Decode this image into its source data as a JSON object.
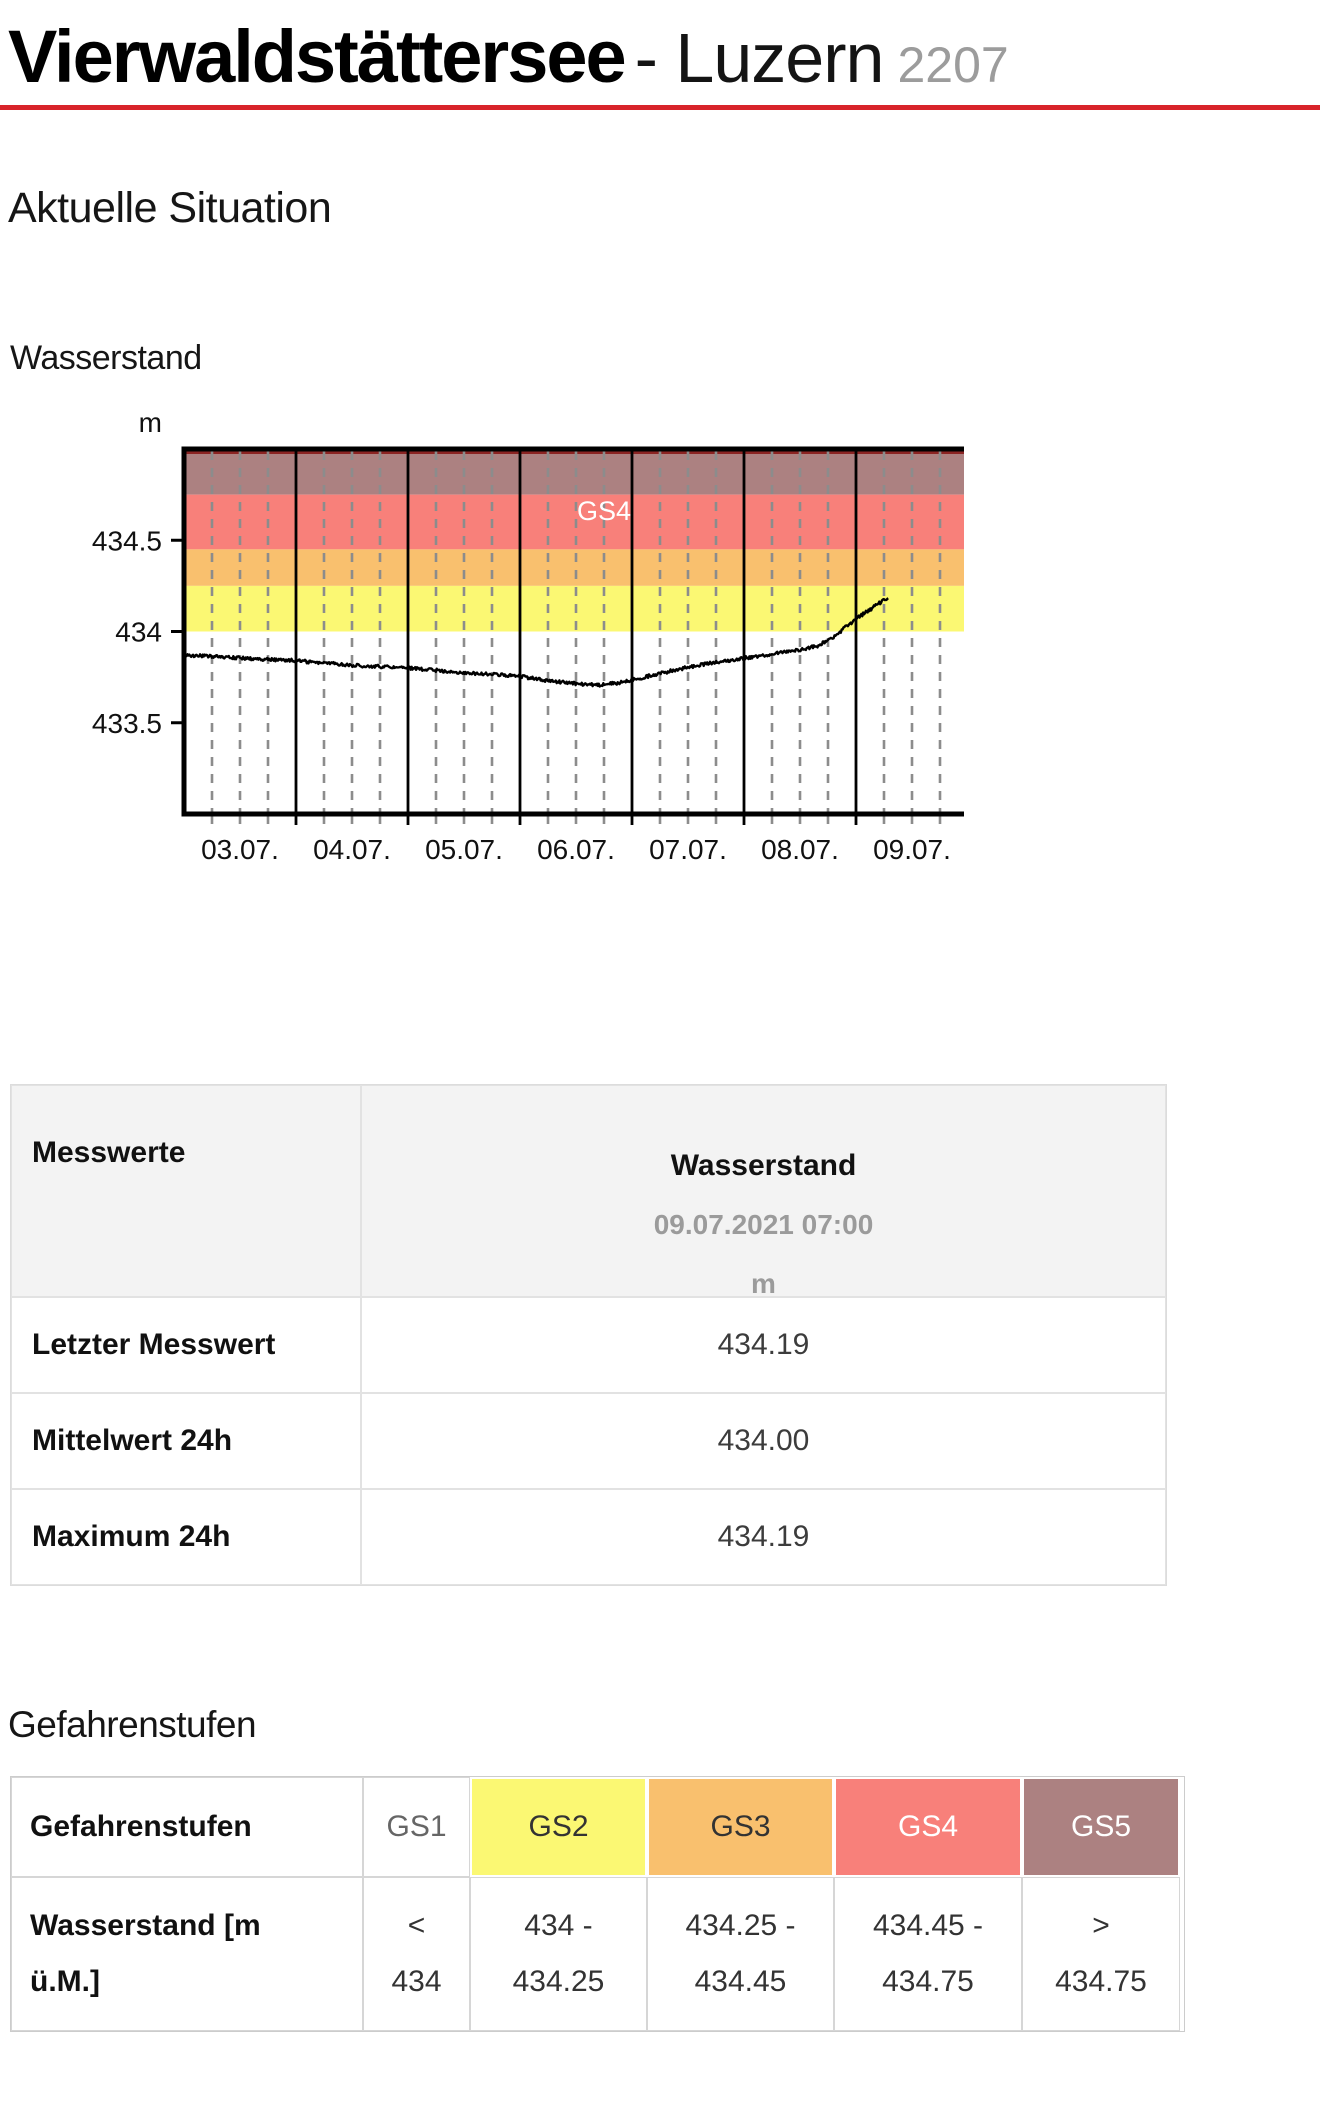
{
  "page": {
    "title_main": "Vierwaldstättersee",
    "title_rest": "- Luzern",
    "station_id": "2207",
    "section_heading": "Aktuelle Situation",
    "chart_heading": "Wasserstand",
    "accent_red": "#d8232a"
  },
  "chart_data": {
    "type": "line",
    "title": "Wasserstand",
    "ylabel": "m",
    "ylim": [
      433.0,
      435.0
    ],
    "yticks": [
      "434.5",
      "434",
      "433.5"
    ],
    "ytick_values": [
      434.5,
      434.0,
      433.5
    ],
    "x_tick_labels": [
      "03.07.",
      "04.07.",
      "05.07.",
      "06.07.",
      "07.07.",
      "08.07.",
      "09.07."
    ],
    "days_total": 7,
    "subticks_per_day": 4,
    "grid_color": "#8c8c8c",
    "line_color": "#000000",
    "top_strip_color": "#8b2423",
    "bands": [
      {
        "label": "GS5",
        "from": 434.75,
        "to": 435.0,
        "color": "#ac8181"
      },
      {
        "label": "GS4",
        "from": 434.45,
        "to": 434.75,
        "color": "#f8807a"
      },
      {
        "label": "GS3",
        "from": 434.25,
        "to": 434.45,
        "color": "#f9c06e"
      },
      {
        "label": "GS2",
        "from": 434.0,
        "to": 434.25,
        "color": "#fbf873"
      }
    ],
    "band_label": {
      "text": "GS4",
      "day": 3.75,
      "value": 434.61,
      "color": "#ffffff"
    },
    "series": [
      {
        "name": "Wasserstand 03.07.-09.07.",
        "end_day": 6.29,
        "control_points": [
          [
            0.0,
            433.87
          ],
          [
            0.5,
            433.855
          ],
          [
            1.0,
            433.84
          ],
          [
            1.5,
            433.815
          ],
          [
            2.0,
            433.8
          ],
          [
            2.5,
            433.775
          ],
          [
            3.0,
            433.755
          ],
          [
            3.25,
            433.73
          ],
          [
            3.5,
            433.715
          ],
          [
            3.7,
            433.705
          ],
          [
            3.9,
            433.72
          ],
          [
            4.0,
            433.735
          ],
          [
            4.25,
            433.77
          ],
          [
            4.5,
            433.805
          ],
          [
            4.75,
            433.83
          ],
          [
            5.0,
            433.855
          ],
          [
            5.25,
            433.875
          ],
          [
            5.5,
            433.9
          ],
          [
            5.65,
            433.92
          ],
          [
            5.8,
            433.97
          ],
          [
            6.0,
            434.07
          ],
          [
            6.15,
            434.13
          ],
          [
            6.29,
            434.19
          ]
        ]
      }
    ],
    "last_value": 434.19
  },
  "measurements_table": {
    "header_left": "Messwerte",
    "header_right_title": "Wasserstand",
    "header_right_datetime": "09.07.2021 07:00",
    "header_right_unit": "m",
    "rows": [
      {
        "label": "Letzter Messwert",
        "value": "434.19"
      },
      {
        "label": "Mittelwert 24h",
        "value": "434.00"
      },
      {
        "label": "Maximum 24h",
        "value": "434.19"
      }
    ]
  },
  "danger_section": {
    "heading": "Gefahrenstufen",
    "table": {
      "row1_label": "Gefahrenstufen",
      "row2_label": "Wasserstand [m ü.M.]",
      "levels": [
        {
          "name": "GS1",
          "range": "< 434",
          "bg": "#ffffff",
          "fg": "#666666"
        },
        {
          "name": "GS2",
          "range": "434 - 434.25",
          "bg": "#fbf873",
          "fg": "#333333"
        },
        {
          "name": "GS3",
          "range": "434.25 - 434.45",
          "bg": "#f9c06e",
          "fg": "#333333"
        },
        {
          "name": "GS4",
          "range": "434.45 - 434.75",
          "bg": "#f8807a",
          "fg": "#ffffff"
        },
        {
          "name": "GS5",
          "range": "> 434.75",
          "bg": "#ac8181",
          "fg": "#ffffff"
        }
      ]
    }
  }
}
